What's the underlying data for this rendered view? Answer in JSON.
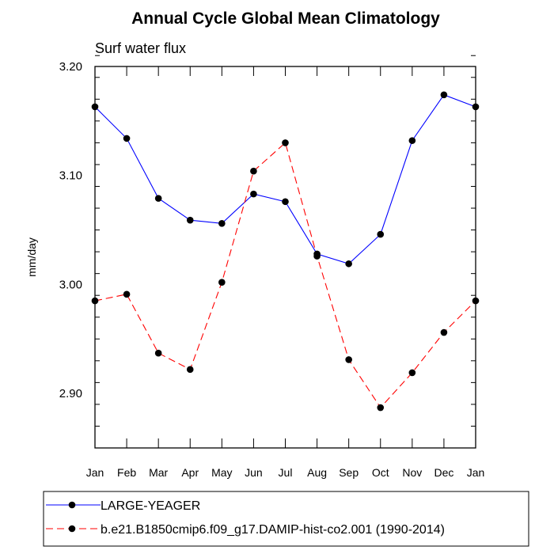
{
  "chart_data": {
    "type": "line",
    "title": "Annual Cycle Global Mean Climatology",
    "subtitle": "Surf water flux",
    "ylabel": "mm/day",
    "xlabel": "",
    "ylim": [
      2.85,
      3.2
    ],
    "yticks_major": [
      2.9,
      3.0,
      3.1,
      3.2
    ],
    "ytick_labels": [
      "2.90",
      "3.00",
      "3.10",
      "3.20"
    ],
    "categories": [
      "Jan",
      "Feb",
      "Mar",
      "Apr",
      "May",
      "Jun",
      "Jul",
      "Aug",
      "Sep",
      "Oct",
      "Nov",
      "Dec",
      "Jan"
    ],
    "series": [
      {
        "name": "LARGE-YEAGER",
        "color": "#0000ff",
        "dash": "solid",
        "values": [
          3.163,
          3.134,
          3.079,
          3.059,
          3.056,
          3.083,
          3.076,
          3.028,
          3.019,
          3.046,
          3.132,
          3.174,
          3.163
        ]
      },
      {
        "name": "b.e21.B1850cmip6.f09_g17.DAMIP-hist-co2.001 (1990-2014)",
        "color": "#ff0000",
        "dash": "dashed",
        "values": [
          2.985,
          2.991,
          2.937,
          2.922,
          3.002,
          3.104,
          3.13,
          3.026,
          2.931,
          2.887,
          2.919,
          2.956,
          2.985
        ]
      }
    ],
    "legend": "bottom"
  }
}
